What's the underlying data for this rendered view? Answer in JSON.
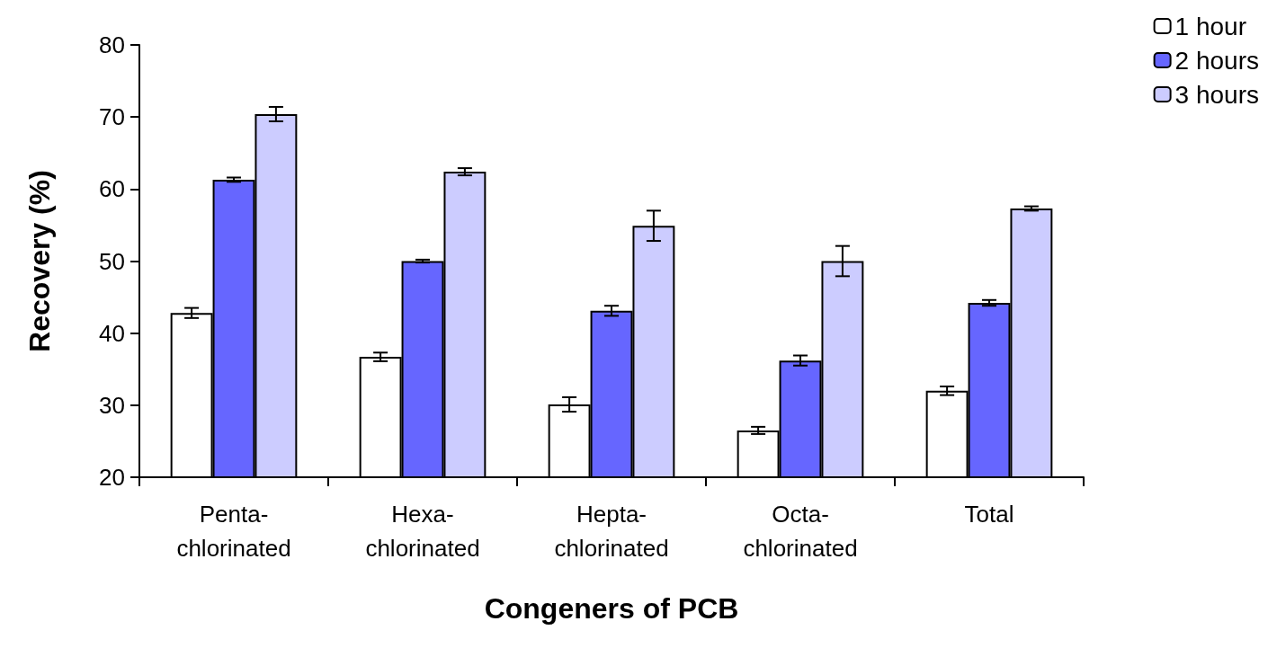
{
  "chart_data": {
    "type": "bar",
    "xlabel": "Congeners of PCB",
    "ylabel": "Recovery (%)",
    "categories": [
      "Penta-\nchlorinated",
      "Hexa-\nchlorinated",
      "Hepta-\nchlorinated",
      "Octa-\nchlorinated",
      "Total"
    ],
    "series": [
      {
        "name": "1 hour",
        "color": "#ffffff",
        "values": [
          42.8,
          36.7,
          30.1,
          26.5,
          32.0
        ],
        "errors": [
          0.7,
          0.6,
          1.0,
          0.5,
          0.6
        ]
      },
      {
        "name": "2 hours",
        "color": "#6666ff",
        "values": [
          61.3,
          50.0,
          43.1,
          36.2,
          44.2
        ],
        "errors": [
          0.3,
          0.2,
          0.7,
          0.7,
          0.4
        ]
      },
      {
        "name": "3 hours",
        "color": "#ccccff",
        "values": [
          70.4,
          62.4,
          54.9,
          50.0,
          57.3
        ],
        "errors": [
          1.0,
          0.5,
          2.1,
          2.1,
          0.3
        ]
      }
    ],
    "ylim": [
      20,
      80
    ],
    "yticks": [
      20,
      30,
      40,
      50,
      60,
      70,
      80
    ],
    "grid": false,
    "legend": "top right"
  }
}
